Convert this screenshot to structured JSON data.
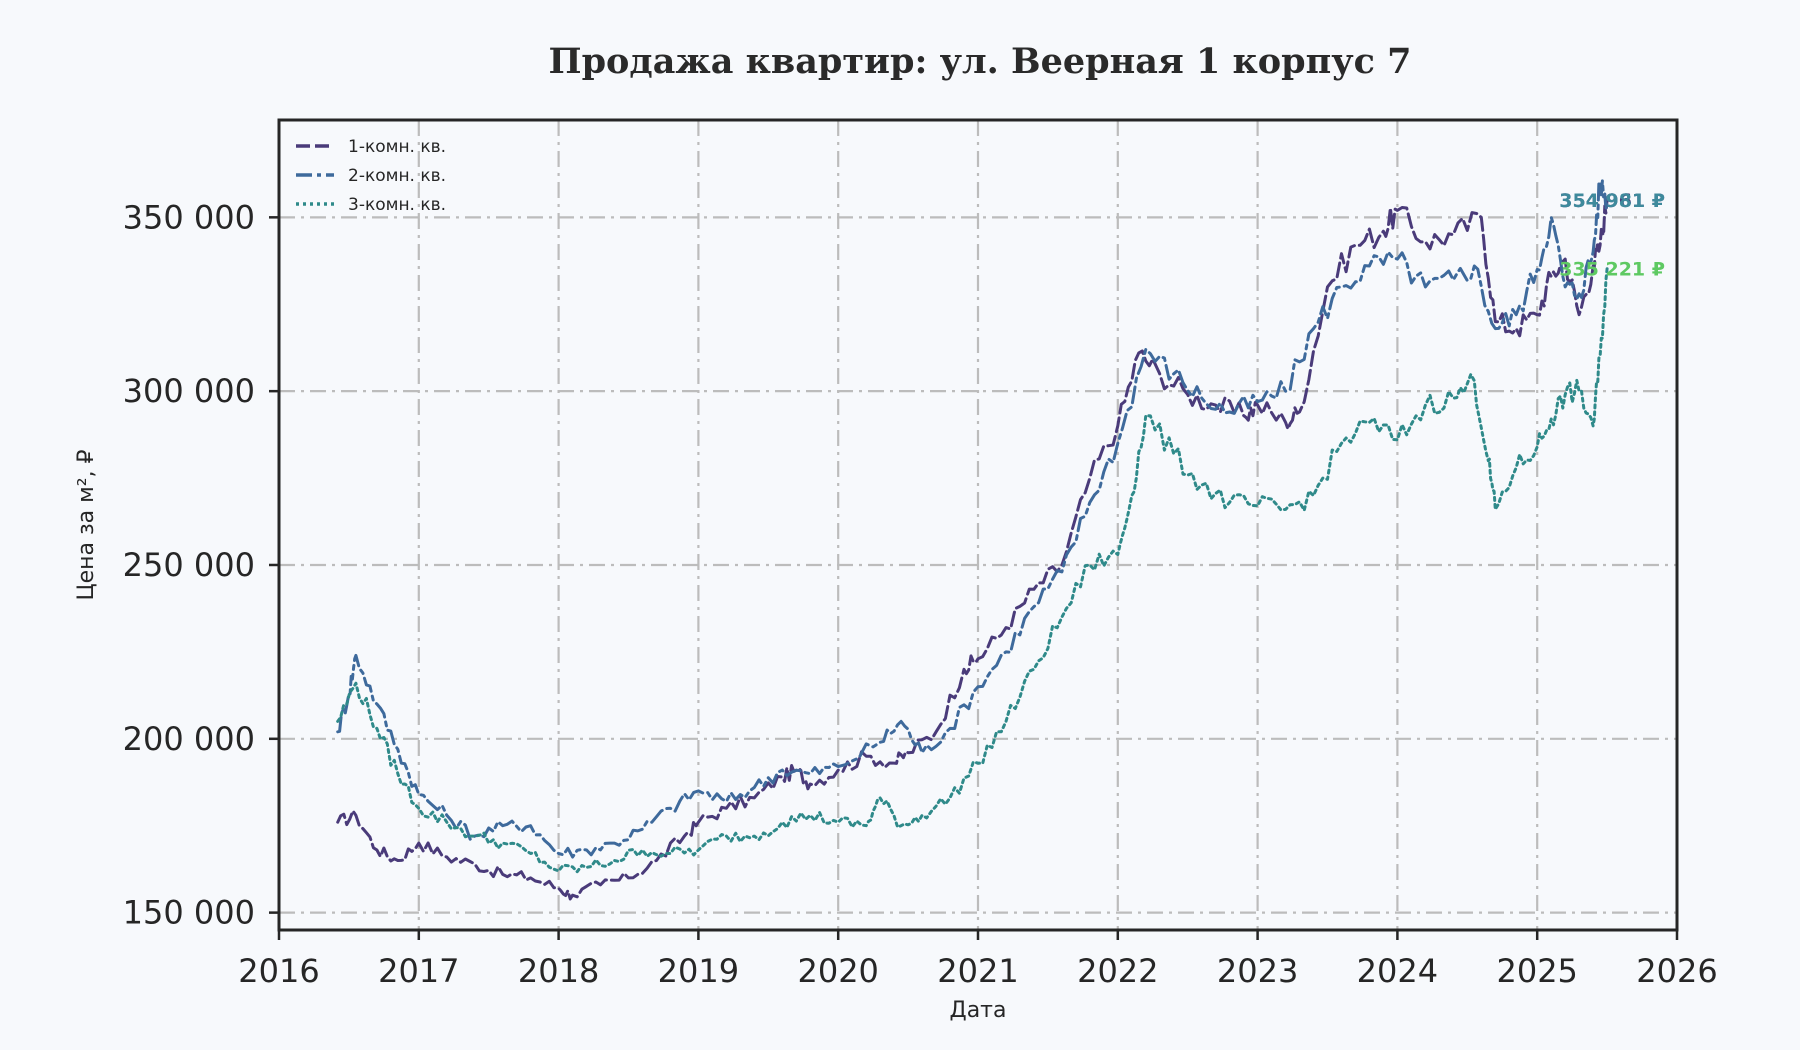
{
  "chart_data": {
    "type": "line",
    "title": "Продажа квартир: ул. Веерная 1 корпус 7",
    "xlabel": "Дата",
    "ylabel": "Цена за м², ₽",
    "xlim": [
      2016,
      2026
    ],
    "ylim": [
      145000,
      378000
    ],
    "x_ticks": [
      "2016",
      "2017",
      "2018",
      "2019",
      "2020",
      "2021",
      "2022",
      "2023",
      "2024",
      "2025",
      "2026"
    ],
    "y_ticks": [
      "150 000",
      "200 000",
      "250 000",
      "300 000",
      "350 000"
    ],
    "grid": true,
    "legend_position": "top-left",
    "series": [
      {
        "name": "1-комн. кв.",
        "color": "#4a3b7a",
        "style": "dashed",
        "x": [
          2016.42,
          2016.55,
          2016.7,
          2016.85,
          2017.0,
          2017.2,
          2017.4,
          2017.6,
          2017.8,
          2018.0,
          2018.1,
          2018.3,
          2018.5,
          2018.7,
          2018.9,
          2019.0,
          2019.2,
          2019.4,
          2019.6,
          2019.7,
          2019.8,
          2020.0,
          2020.2,
          2020.4,
          2020.5,
          2020.7,
          2020.9,
          2021.0,
          2021.2,
          2021.4,
          2021.6,
          2021.8,
          2022.0,
          2022.15,
          2022.3,
          2022.5,
          2022.7,
          2022.9,
          2023.0,
          2023.2,
          2023.3,
          2023.5,
          2023.7,
          2023.9,
          2024.0,
          2024.2,
          2024.4,
          2024.6,
          2024.7,
          2024.85,
          2025.0,
          2025.1,
          2025.2,
          2025.3,
          2025.4,
          2025.45,
          2025.5
        ],
        "values": [
          176000,
          178000,
          168000,
          165000,
          170000,
          166000,
          164000,
          161000,
          160000,
          157000,
          155000,
          158000,
          160000,
          165000,
          172000,
          176000,
          180000,
          183000,
          189000,
          191000,
          187000,
          191000,
          195000,
          193000,
          196000,
          202000,
          220000,
          223000,
          232000,
          243000,
          250000,
          275000,
          290000,
          311000,
          305000,
          299000,
          296000,
          293000,
          296000,
          291000,
          294000,
          330000,
          342000,
          346000,
          352000,
          343000,
          345000,
          350000,
          320000,
          318000,
          322000,
          333000,
          338000,
          322000,
          336000,
          342000,
          354961
        ]
      },
      {
        "name": "2-комн. кв.",
        "color": "#3e6a9c",
        "style": "dashdot",
        "x": [
          2016.42,
          2016.5,
          2016.55,
          2016.7,
          2016.85,
          2017.0,
          2017.2,
          2017.4,
          2017.6,
          2017.8,
          2018.0,
          2018.2,
          2018.4,
          2018.6,
          2018.8,
          2019.0,
          2019.2,
          2019.4,
          2019.6,
          2019.8,
          2020.0,
          2020.3,
          2020.45,
          2020.6,
          2020.8,
          2021.0,
          2021.2,
          2021.4,
          2021.6,
          2021.8,
          2022.0,
          2022.2,
          2022.4,
          2022.6,
          2022.8,
          2023.0,
          2023.2,
          2023.4,
          2023.6,
          2023.8,
          2024.0,
          2024.2,
          2024.4,
          2024.55,
          2024.7,
          2024.85,
          2025.0,
          2025.1,
          2025.2,
          2025.3,
          2025.4,
          2025.45,
          2025.5
        ],
        "values": [
          202000,
          213000,
          224000,
          210000,
          197000,
          184000,
          178000,
          172000,
          175000,
          175000,
          167000,
          168000,
          170000,
          174000,
          180000,
          185000,
          182000,
          186000,
          191000,
          190000,
          192000,
          199000,
          205000,
          196000,
          203000,
          215000,
          225000,
          238000,
          248000,
          268000,
          285000,
          312000,
          305000,
          298000,
          294000,
          297000,
          300000,
          318000,
          330000,
          336000,
          338000,
          330000,
          332000,
          336000,
          318000,
          322000,
          335000,
          350000,
          330000,
          328000,
          340000,
          360000,
          354981
        ]
      },
      {
        "name": "3-комн. кв.",
        "color": "#2f8a8a",
        "style": "dotted",
        "x": [
          2016.42,
          2016.55,
          2016.7,
          2016.85,
          2017.0,
          2017.2,
          2017.4,
          2017.6,
          2017.8,
          2018.0,
          2018.2,
          2018.4,
          2018.6,
          2018.8,
          2019.0,
          2019.2,
          2019.4,
          2019.6,
          2019.8,
          2020.0,
          2020.2,
          2020.3,
          2020.45,
          2020.6,
          2020.8,
          2021.0,
          2021.2,
          2021.4,
          2021.6,
          2021.8,
          2022.0,
          2022.1,
          2022.2,
          2022.4,
          2022.6,
          2022.8,
          2023.0,
          2023.2,
          2023.4,
          2023.6,
          2023.8,
          2024.0,
          2024.2,
          2024.4,
          2024.55,
          2024.65,
          2024.7,
          2024.85,
          2025.0,
          2025.1,
          2025.2,
          2025.3,
          2025.4,
          2025.45,
          2025.5
        ],
        "values": [
          205000,
          216000,
          203000,
          190000,
          180000,
          176000,
          172000,
          170000,
          167000,
          162000,
          163000,
          165000,
          168000,
          167000,
          168000,
          172000,
          172000,
          176000,
          178000,
          176000,
          175000,
          183000,
          175000,
          178000,
          183000,
          193000,
          205000,
          220000,
          235000,
          250000,
          253000,
          270000,
          293000,
          282000,
          273000,
          268000,
          267000,
          266000,
          270000,
          285000,
          291000,
          286000,
          296000,
          298000,
          303000,
          280000,
          266000,
          278000,
          284000,
          292000,
          299000,
          300000,
          290000,
          310000,
          335221
        ]
      }
    ],
    "end_labels": [
      {
        "text": "354 961 ₽",
        "value": 354961,
        "color": "#4a3b7a"
      },
      {
        "text": "354 981 ₽",
        "value": 354981,
        "color": "#3e8a9c"
      },
      {
        "text": "335 221 ₽",
        "value": 335221,
        "color": "#5ec962"
      }
    ]
  }
}
